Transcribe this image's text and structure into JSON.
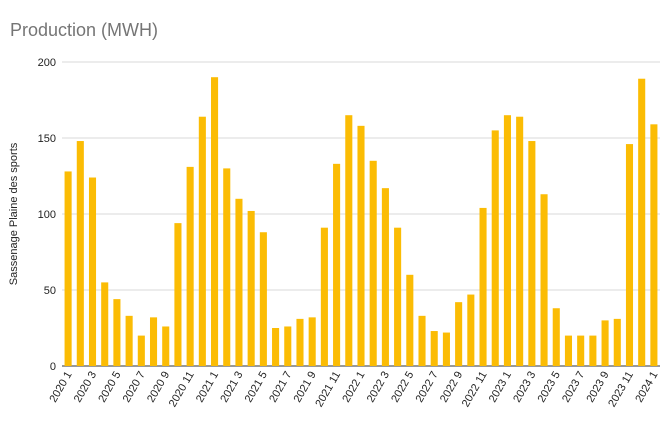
{
  "chart_data": {
    "type": "bar",
    "title": "Production (MWH)",
    "xlabel": "",
    "ylabel": "Sassenage Plaine des sports",
    "ylim": [
      0,
      200
    ],
    "yticks": [
      0,
      50,
      100,
      150,
      200
    ],
    "grid": true,
    "legend": "none",
    "bar_color": "#FBBC04",
    "categories": [
      "2020 1",
      "2020 2",
      "2020 3",
      "2020 4",
      "2020 5",
      "2020 6",
      "2020 7",
      "2020 8",
      "2020 9",
      "2020 10",
      "2020 11",
      "2020 12",
      "2021 1",
      "2021 2",
      "2021 3",
      "2021 4",
      "2021 5",
      "2021 6",
      "2021 7",
      "2021 8",
      "2021 9",
      "2021 10",
      "2021 11",
      "2021 12",
      "2022 1",
      "2022 2",
      "2022 3",
      "2022 4",
      "2022 5",
      "2022 6",
      "2022 7",
      "2022 8",
      "2022 9",
      "2022 10",
      "2022 11",
      "2022 12",
      "2023 1",
      "2023 2",
      "2023 3",
      "2023 4",
      "2023 5",
      "2023 6",
      "2023 7",
      "2023 8",
      "2023 9",
      "2023 10",
      "2023 11",
      "2023 12",
      "2024 1"
    ],
    "tick_labels": [
      "2020 1",
      "2020 3",
      "2020 5",
      "2020 7",
      "2020 9",
      "2020 11",
      "2021 1",
      "2021 3",
      "2021 5",
      "2021 7",
      "2021 9",
      "2021 11",
      "2022 1",
      "2022 3",
      "2022 5",
      "2022 7",
      "2022 9",
      "2022 11",
      "2023 1",
      "2023 3",
      "2023 5",
      "2023 7",
      "2023 9",
      "2023 11",
      "2024 1"
    ],
    "values": [
      128,
      148,
      124,
      55,
      44,
      33,
      20,
      32,
      26,
      94,
      131,
      164,
      190,
      130,
      110,
      102,
      88,
      25,
      26,
      31,
      32,
      91,
      133,
      165,
      158,
      135,
      117,
      91,
      60,
      33,
      23,
      22,
      42,
      47,
      104,
      155,
      165,
      164,
      148,
      113,
      38,
      20,
      20,
      20,
      30,
      31,
      146,
      189,
      159
    ]
  }
}
